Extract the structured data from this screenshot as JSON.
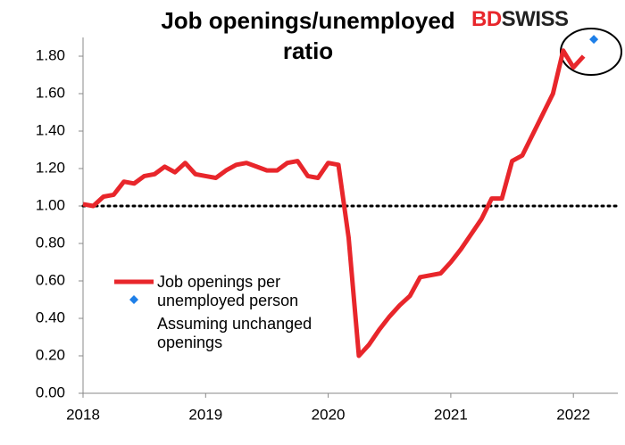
{
  "chart_data": {
    "type": "line",
    "title": "Job openings/unemployed ratio",
    "logo": [
      "BD",
      "SWISS"
    ],
    "categories": [
      "2018",
      null,
      null,
      null,
      null,
      null,
      null,
      null,
      null,
      null,
      null,
      null,
      "2019",
      null,
      null,
      null,
      null,
      null,
      null,
      null,
      null,
      null,
      null,
      null,
      "2020",
      null,
      null,
      null,
      null,
      null,
      null,
      null,
      null,
      null,
      null,
      null,
      "2021",
      null,
      null,
      null,
      null,
      null,
      null,
      null,
      null,
      null,
      null,
      null,
      "2022",
      null,
      null
    ],
    "series": [
      {
        "name": "Job openings per unemployed person",
        "color": "#e8262b",
        "style": "line",
        "values": [
          1.01,
          1.0,
          1.05,
          1.06,
          1.13,
          1.12,
          1.16,
          1.17,
          1.21,
          1.18,
          1.23,
          1.17,
          1.16,
          1.15,
          1.19,
          1.22,
          1.23,
          1.21,
          1.19,
          1.19,
          1.23,
          1.24,
          1.16,
          1.15,
          1.23,
          1.22,
          0.83,
          0.2,
          0.26,
          0.34,
          0.41,
          0.47,
          0.52,
          0.62,
          0.63,
          0.64,
          0.7,
          0.77,
          0.85,
          0.93,
          1.04,
          1.04,
          1.24,
          1.27,
          1.38,
          1.49,
          1.6,
          1.83,
          1.74,
          1.8,
          null
        ]
      },
      {
        "name": "Assuming unchanged openings",
        "color": "#1e7fe8",
        "style": "marker",
        "values": [
          null,
          null,
          null,
          null,
          null,
          null,
          null,
          null,
          null,
          null,
          null,
          null,
          null,
          null,
          null,
          null,
          null,
          null,
          null,
          null,
          null,
          null,
          null,
          null,
          null,
          null,
          null,
          null,
          null,
          null,
          null,
          null,
          null,
          null,
          null,
          null,
          null,
          null,
          null,
          null,
          null,
          null,
          null,
          null,
          null,
          null,
          null,
          null,
          null,
          null,
          1.89
        ]
      }
    ],
    "ylim": [
      0,
      1.9
    ],
    "yticks": [
      {
        "value": 0,
        "label": "0.00"
      },
      {
        "value": 0.2,
        "label": "0.20"
      },
      {
        "value": 0.4,
        "label": "0.40"
      },
      {
        "value": 0.6,
        "label": "0.60"
      },
      {
        "value": 0.8,
        "label": "0.80"
      },
      {
        "value": 1,
        "label": "1.00"
      },
      {
        "value": 1.2,
        "label": "1.20"
      },
      {
        "value": 1.4,
        "label": "1.40"
      },
      {
        "value": 1.6,
        "label": "1.60"
      },
      {
        "value": 1.8,
        "label": "1.80"
      }
    ],
    "reference_line": 1,
    "grid": false
  }
}
